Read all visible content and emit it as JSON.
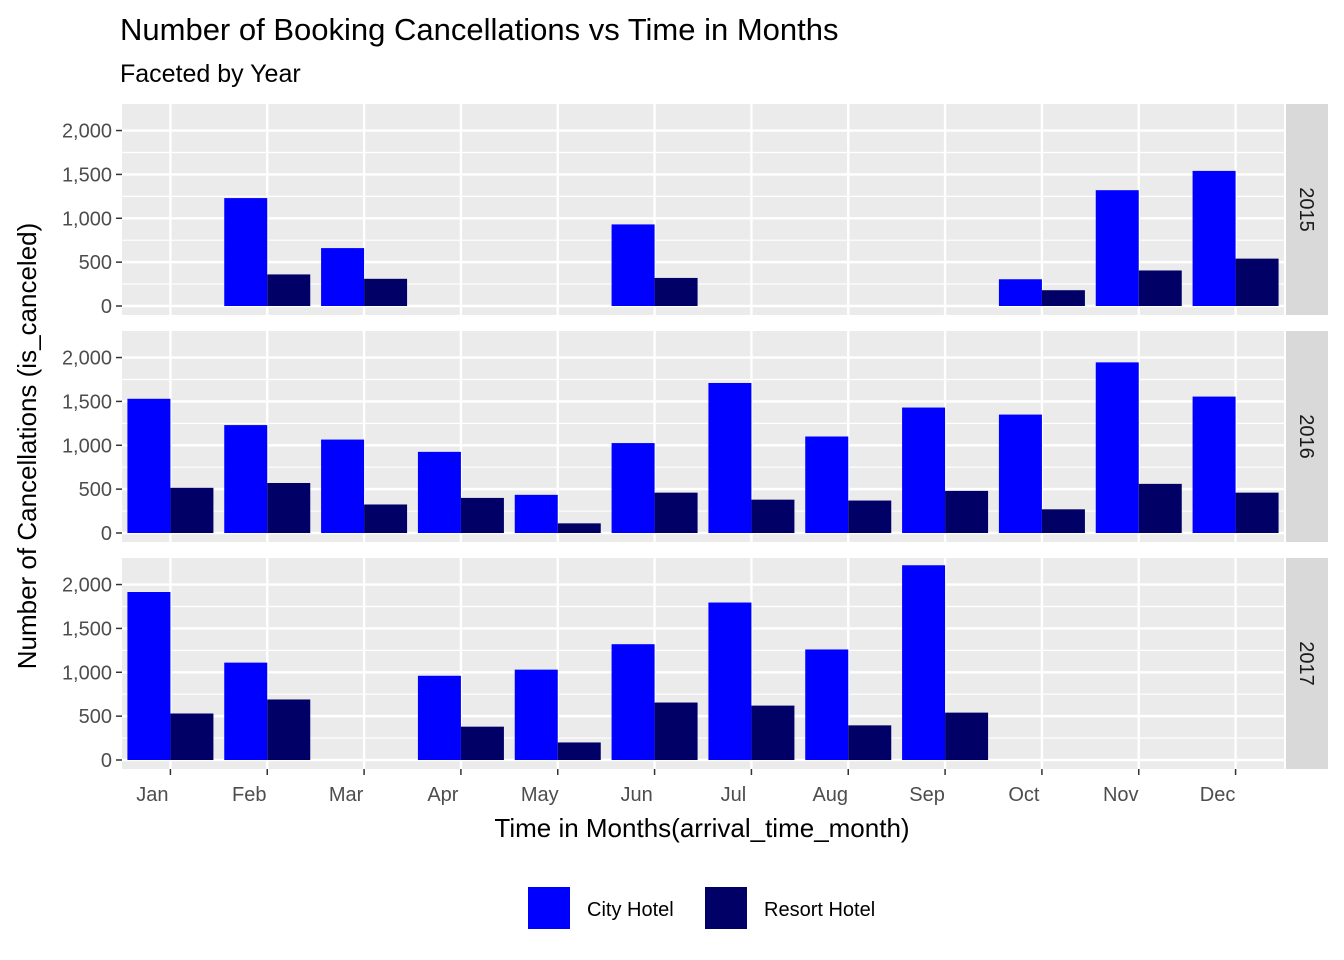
{
  "chart_data": {
    "type": "bar",
    "title": "Number of Booking Cancellations vs Time in Months",
    "subtitle": "Faceted by Year",
    "xlabel": "Time in Months(arrival_time_month)",
    "ylabel": "Number of Cancellations (is_canceled)",
    "categories": [
      "Jan",
      "Feb",
      "Mar",
      "Apr",
      "May",
      "Jun",
      "Jul",
      "Aug",
      "Sep",
      "Oct",
      "Nov",
      "Dec"
    ],
    "ylim": [
      0,
      2200
    ],
    "y_ticks": [
      0,
      500,
      1000,
      1500,
      2000
    ],
    "y_tick_labels": [
      "0",
      "500",
      "1,000",
      "1,500",
      "2,000"
    ],
    "grid": true,
    "legend_position": "bottom",
    "series_order": [
      "City Hotel",
      "Resort Hotel"
    ],
    "colors": {
      "City Hotel": "#0000ff",
      "Resort Hotel": "#000066"
    },
    "facets": [
      {
        "label": "2015",
        "series": [
          {
            "name": "City Hotel",
            "values": [
              null,
              1230,
              660,
              null,
              null,
              930,
              null,
              null,
              null,
              305,
              1320,
              1540
            ]
          },
          {
            "name": "Resort Hotel",
            "values": [
              null,
              360,
              310,
              null,
              null,
              320,
              null,
              null,
              null,
              180,
              405,
              540
            ]
          }
        ]
      },
      {
        "label": "2016",
        "series": [
          {
            "name": "City Hotel",
            "values": [
              1530,
              1230,
              1065,
              925,
              435,
              1025,
              1710,
              1100,
              1430,
              1350,
              1945,
              1555
            ]
          },
          {
            "name": "Resort Hotel",
            "values": [
              515,
              570,
              325,
              400,
              110,
              460,
              380,
              370,
              480,
              270,
              560,
              460
            ]
          }
        ]
      },
      {
        "label": "2017",
        "series": [
          {
            "name": "City Hotel",
            "values": [
              1915,
              1110,
              null,
              960,
              1030,
              1320,
              1795,
              1260,
              2220,
              null,
              null,
              null
            ]
          },
          {
            "name": "Resort Hotel",
            "values": [
              530,
              690,
              null,
              380,
              200,
              655,
              620,
              395,
              540,
              null,
              null,
              null
            ]
          }
        ]
      }
    ]
  }
}
